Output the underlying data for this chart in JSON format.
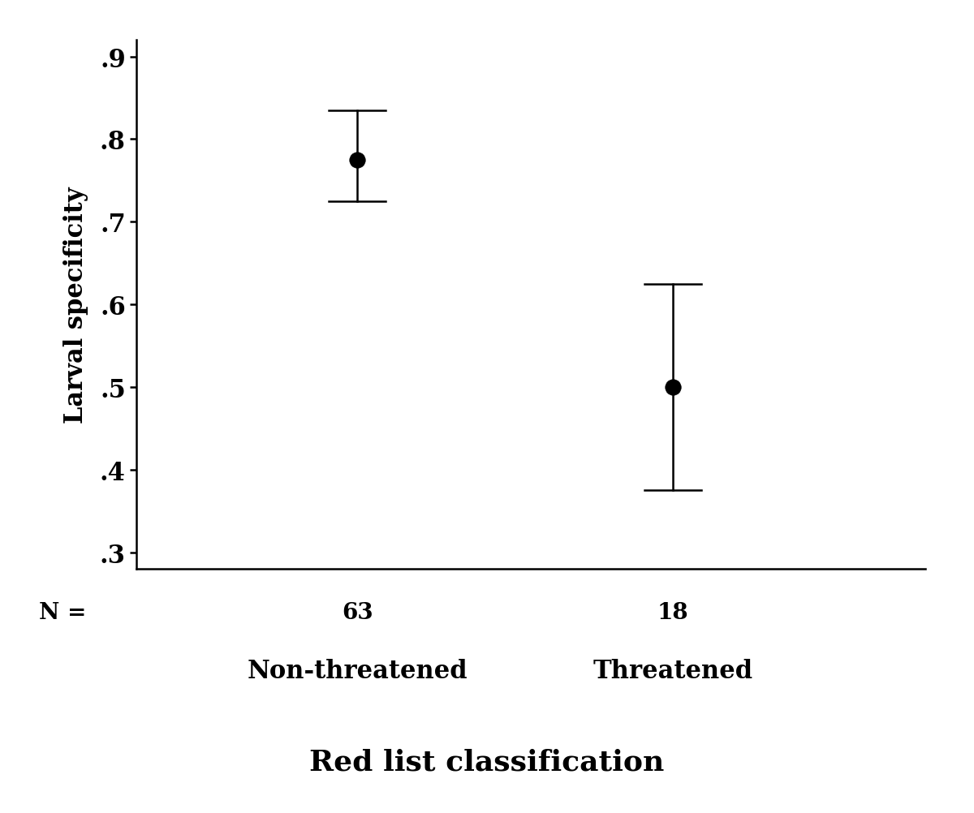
{
  "categories": [
    "Non-threatened",
    "Threatened"
  ],
  "x_positions": [
    1,
    2
  ],
  "means": [
    0.775,
    0.5
  ],
  "ci_lower": [
    0.725,
    0.375
  ],
  "ci_upper": [
    0.835,
    0.625
  ],
  "n_labels": [
    "63",
    "18"
  ],
  "n_label_prefix": "N = ",
  "ylabel": "Larval specificity",
  "xlabel": "Red list classification",
  "ylim": [
    0.28,
    0.92
  ],
  "yticks": [
    0.3,
    0.4,
    0.5,
    0.6,
    0.7,
    0.8,
    0.9
  ],
  "ytick_labels": [
    ".3",
    ".4",
    ".5",
    ".6",
    ".7",
    ".8",
    ".9"
  ],
  "xlim": [
    0.3,
    2.8
  ],
  "marker_size": 14,
  "marker_color": "black",
  "capsize_half": 0.09,
  "linewidth": 1.8,
  "xlabel_fontsize": 26,
  "ylabel_fontsize": 22,
  "tick_fontsize": 22,
  "n_fontsize": 20,
  "cat_fontsize": 22,
  "background_color": "#ffffff",
  "font_family": "DejaVu Serif",
  "font_weight": "bold"
}
